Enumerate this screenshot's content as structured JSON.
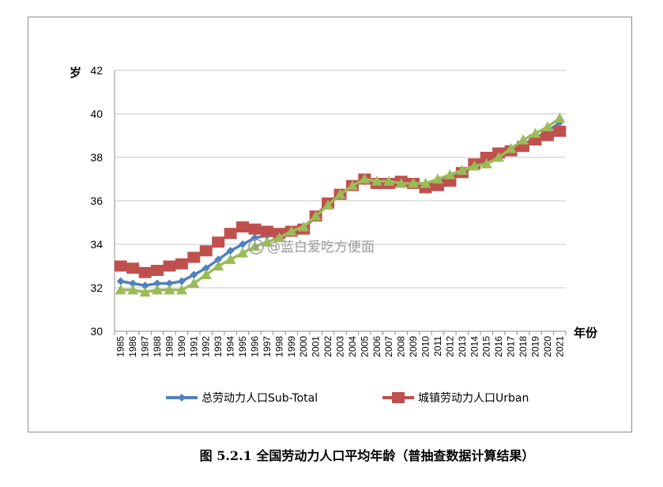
{
  "caption": "图 5.2.1 全国劳动力人口平均年龄（普抽查数据计算结果）",
  "watermark": "@蓝白爱吃方便面",
  "chart_data": {
    "type": "line",
    "y_unit_label": "岁",
    "x_unit_label": "年份",
    "ylim": [
      30,
      42
    ],
    "yticks": [
      30,
      32,
      34,
      36,
      38,
      40,
      42
    ],
    "grid": "horizontal",
    "legend_position": "bottom",
    "x": [
      1985,
      1986,
      1987,
      1988,
      1989,
      1990,
      1991,
      1992,
      1993,
      1994,
      1995,
      1996,
      1997,
      1998,
      1999,
      2000,
      2001,
      2002,
      2003,
      2004,
      2005,
      2006,
      2007,
      2008,
      2009,
      2010,
      2011,
      2012,
      2013,
      2014,
      2015,
      2016,
      2017,
      2018,
      2019,
      2020,
      2021
    ],
    "series": [
      {
        "name": "总劳动力人口Sub-Total",
        "color": "#4f81bd",
        "marker": "diamond",
        "values": [
          32.3,
          32.2,
          32.1,
          32.2,
          32.2,
          32.3,
          32.6,
          32.9,
          33.3,
          33.7,
          34.0,
          34.3,
          34.4,
          34.4,
          34.6,
          34.8,
          35.3,
          35.8,
          36.3,
          36.7,
          36.9,
          36.9,
          36.8,
          36.8,
          36.8,
          36.7,
          36.9,
          37.1,
          37.3,
          37.6,
          37.8,
          38.0,
          38.3,
          38.6,
          38.9,
          39.2,
          39.6
        ]
      },
      {
        "name": "城镇劳动力人口Urban",
        "color": "#c0504d",
        "marker": "square",
        "values": [
          33.0,
          32.9,
          32.7,
          32.8,
          33.0,
          33.1,
          33.4,
          33.7,
          34.1,
          34.5,
          34.8,
          34.7,
          34.6,
          34.5,
          34.6,
          34.7,
          35.3,
          35.9,
          36.3,
          36.7,
          37.0,
          36.8,
          36.8,
          36.9,
          36.8,
          36.6,
          36.7,
          36.9,
          37.3,
          37.7,
          38.0,
          38.2,
          38.3,
          38.5,
          38.8,
          39.0,
          39.2
        ]
      },
      {
        "name": "",
        "color": "#9bbb59",
        "marker": "triangle",
        "values": [
          31.9,
          31.9,
          31.8,
          31.9,
          31.9,
          31.9,
          32.2,
          32.6,
          33.0,
          33.3,
          33.6,
          33.9,
          34.1,
          34.3,
          34.6,
          34.8,
          35.3,
          35.8,
          36.3,
          36.7,
          37.0,
          36.9,
          36.9,
          36.8,
          36.8,
          36.8,
          37.0,
          37.2,
          37.4,
          37.6,
          37.7,
          38.0,
          38.4,
          38.8,
          39.1,
          39.4,
          39.8
        ]
      }
    ]
  }
}
